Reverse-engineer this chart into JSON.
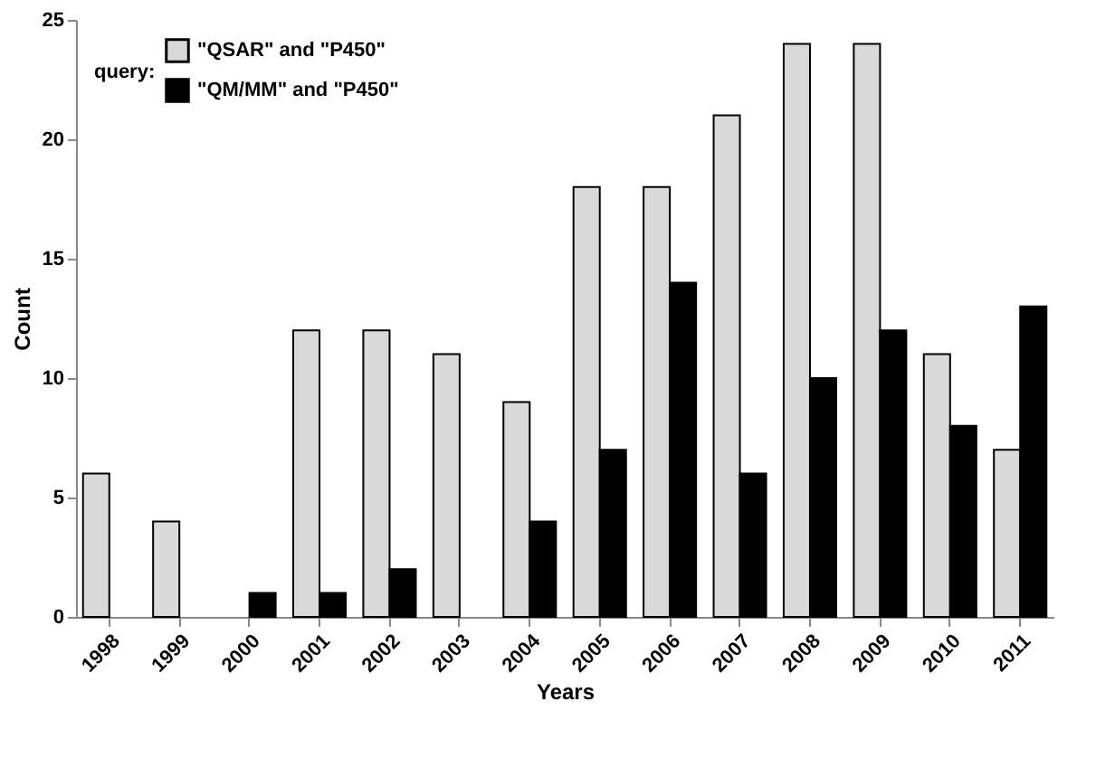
{
  "chart_data": {
    "type": "bar",
    "xlabel": "Years",
    "ylabel": "Count",
    "legend_title": "query:",
    "categories": [
      "1998",
      "1999",
      "2000",
      "2001",
      "2002",
      "2003",
      "2004",
      "2005",
      "2006",
      "2007",
      "2008",
      "2009",
      "2010",
      "2011"
    ],
    "series": [
      {
        "name": "\"QSAR\" and \"P450\"",
        "color": "#d9d9d9",
        "values": [
          6,
          4,
          0,
          12,
          12,
          11,
          9,
          18,
          18,
          21,
          24,
          24,
          11,
          7
        ]
      },
      {
        "name": "\"QM/MM\" and \"P450\"",
        "color": "#000000",
        "values": [
          0,
          0,
          1,
          1,
          2,
          0,
          4,
          7,
          14,
          6,
          10,
          12,
          8,
          13
        ]
      }
    ],
    "ylim": [
      0,
      25
    ],
    "yticks": [
      0,
      5,
      10,
      15,
      20,
      25
    ],
    "grid": false,
    "legend": "top left"
  }
}
